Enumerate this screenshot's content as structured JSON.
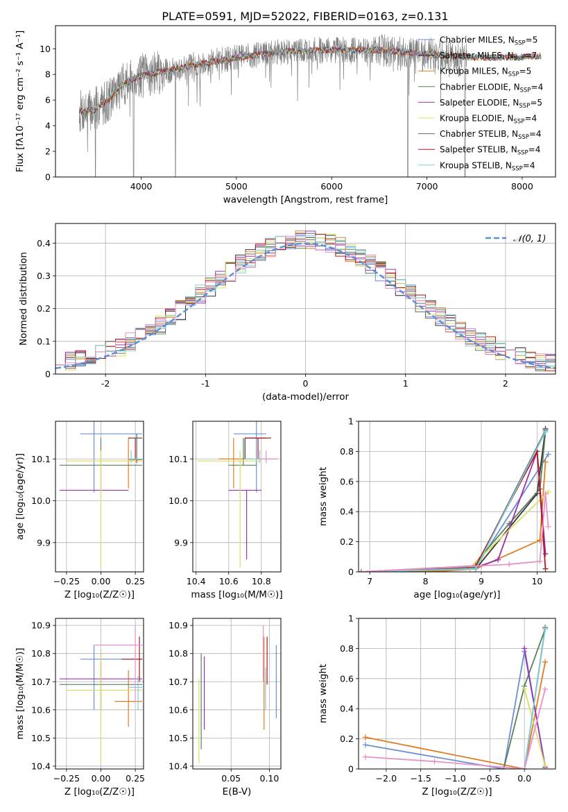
{
  "figure": {
    "title": "PLATE=0591, MJD=52022, FIBERID=0163, z=0.131",
    "models": [
      {
        "name": "Chabrier MILES",
        "nssp": "5",
        "color": "#6a8fd8"
      },
      {
        "name": "Salpeter MILES",
        "nssp": "7",
        "color": "#333333"
      },
      {
        "name": "Kroupa MILES",
        "nssp": "5",
        "color": "#e07b20"
      },
      {
        "name": "Chabrier ELODIE",
        "nssp": "4",
        "color": "#5b7f5b"
      },
      {
        "name": "Salpeter ELODIE",
        "nssp": "5",
        "color": "#9b30b0"
      },
      {
        "name": "Kroupa ELODIE",
        "nssp": "4",
        "color": "#d8e060"
      },
      {
        "name": "Chabrier STELIB",
        "nssp": "4",
        "color": "#666666"
      },
      {
        "name": "Salpeter STELIB",
        "nssp": "4",
        "color": "#b01818"
      },
      {
        "name": "Kroupa STELIB",
        "nssp": "4",
        "color": "#7ecfd8"
      }
    ],
    "extra_colors": {
      "pink": "#e890c8",
      "grid": "#b0b0b0",
      "dashed": "#5b8fd8"
    }
  },
  "chart_data": [
    {
      "id": "spectrum",
      "type": "line",
      "title": "PLATE=0591, MJD=52022, FIBERID=0163, z=0.131",
      "xlabel": "wavelength [Angstrom, rest frame]",
      "ylabel": "Flux [fλ10⁻¹⁷ erg cm⁻² s⁻¹ A⁻¹]",
      "xlim": [
        3100,
        8350
      ],
      "ylim": [
        0,
        11.8
      ],
      "xticks": [
        4000,
        5000,
        6000,
        7000,
        8000
      ],
      "yticks": [
        0,
        2,
        4,
        6,
        8,
        10
      ],
      "legend_loc": "right",
      "data_wavelength_range": [
        3350,
        7420
      ],
      "model_wavelength_range": [
        3350,
        8200
      ],
      "continuum_anchors": [
        [
          3350,
          5.1
        ],
        [
          3500,
          5.2
        ],
        [
          3650,
          6.0
        ],
        [
          3800,
          7.2
        ],
        [
          4000,
          7.9
        ],
        [
          4300,
          8.3
        ],
        [
          4600,
          8.8
        ],
        [
          5000,
          9.3
        ],
        [
          5500,
          9.8
        ],
        [
          6000,
          9.9
        ],
        [
          6500,
          9.9
        ],
        [
          7000,
          9.6
        ],
        [
          7500,
          9.3
        ],
        [
          8200,
          9.4
        ]
      ],
      "deep_absorption_wavelengths": [
        3520,
        3920,
        4360,
        6800,
        7400
      ]
    },
    {
      "id": "residuals",
      "type": "histogram",
      "xlabel": "(data-model)/error",
      "ylabel": "Normed distribution",
      "xlim": [
        -2.5,
        2.5
      ],
      "ylim": [
        0,
        0.46
      ],
      "xticks": [
        -2,
        -1,
        0,
        1,
        2
      ],
      "yticks": [
        0.0,
        0.1,
        0.2,
        0.3,
        0.4
      ],
      "legend": "𝒩(0, 1)",
      "legend_loc": "top-right",
      "bin_width": 0.1,
      "reference": "normal(0,1)"
    },
    {
      "id": "age_vs_Z",
      "type": "errorbar",
      "xlabel": "Z [log₁₀(Z/Z☉)]",
      "ylabel": "age  [log₁₀(age/yr)]",
      "xlim": [
        -0.33,
        0.31
      ],
      "ylim": [
        9.83,
        10.19
      ],
      "xticks": [
        -0.25,
        0.0,
        0.25
      ],
      "xticklabels": [
        "−0.25",
        "0.00",
        "0.25"
      ],
      "yticks": [
        9.9,
        10.0,
        10.1
      ],
      "yticklabels": [
        "9.9",
        "10.0",
        "10.1"
      ],
      "points": [
        {
          "c": 2,
          "x": 0.2,
          "y": 10.098,
          "xlo": 0.2,
          "xhi": 0.3,
          "ylo": 10.03,
          "yhi": 10.15
        },
        {
          "c": 7,
          "x": 0.25,
          "y": 10.15,
          "xlo": 0.2,
          "xhi": 0.3,
          "ylo": 10.1,
          "yhi": 10.15
        },
        {
          "c": 0,
          "x": -0.05,
          "y": 10.16,
          "xlo": -0.15,
          "xhi": 0.3,
          "ylo": 10.02,
          "yhi": 10.19
        },
        {
          "c": 3,
          "x": 0.0,
          "y": 10.085,
          "xlo": -0.3,
          "xhi": 0.3,
          "ylo": 10.085,
          "yhi": 10.15
        },
        {
          "c": 4,
          "x": 0.0,
          "y": 10.025,
          "xlo": -0.3,
          "xhi": 0.2,
          "ylo": 10.025,
          "yhi": 10.09
        },
        {
          "c": 5,
          "x": 0.0,
          "y": 10.095,
          "xlo": -0.25,
          "xhi": 0.3,
          "ylo": 9.84,
          "yhi": 10.12
        },
        {
          "c": 6,
          "x": 0.26,
          "y": 10.15,
          "xlo": 0.22,
          "xhi": 0.3,
          "ylo": 10.09,
          "yhi": 10.16
        },
        {
          "c": 8,
          "x": 0.22,
          "y": 10.1,
          "xlo": 0.2,
          "xhi": 0.3,
          "ylo": 10.09,
          "yhi": 10.12
        }
      ]
    },
    {
      "id": "age_vs_mass",
      "type": "errorbar",
      "xlabel": "mass [log₁₀(M/M☉)]",
      "ylabel": "",
      "xlim": [
        10.38,
        10.92
      ],
      "ylim": [
        9.83,
        10.19
      ],
      "xticks": [
        10.4,
        10.6,
        10.8
      ],
      "xticklabels": [
        "10.4",
        "10.6",
        "10.8"
      ],
      "yticks": [
        9.9,
        10.0,
        10.1
      ],
      "yticklabels": [
        "9.9",
        "10.0",
        "10.1"
      ],
      "points": [
        {
          "c": 0,
          "x": 10.77,
          "y": 10.16,
          "xlo": 10.63,
          "xhi": 10.83,
          "ylo": 10.02,
          "yhi": 10.19
        },
        {
          "c": 1,
          "x": 10.7,
          "y": 10.15,
          "xlo": 10.7,
          "xhi": 10.83,
          "ylo": 10.1,
          "yhi": 10.15
        },
        {
          "c": 2,
          "x": 10.63,
          "y": 10.1,
          "xlo": 10.54,
          "xhi": 10.74,
          "ylo": 10.03,
          "yhi": 10.15
        },
        {
          "c": 3,
          "x": 10.69,
          "y": 10.085,
          "xlo": 10.6,
          "xhi": 10.77,
          "ylo": 10.085,
          "yhi": 10.15
        },
        {
          "c": 4,
          "x": 10.71,
          "y": 10.025,
          "xlo": 10.6,
          "xhi": 10.8,
          "ylo": 9.86,
          "yhi": 10.025
        },
        {
          "c": 5,
          "x": 10.67,
          "y": 10.095,
          "xlo": 10.41,
          "xhi": 10.8,
          "ylo": 9.84,
          "yhi": 10.12
        },
        {
          "c": 7,
          "x": 10.78,
          "y": 10.15,
          "xlo": 10.7,
          "xhi": 10.86,
          "ylo": 10.1,
          "yhi": 10.15
        },
        {
          "c": 8,
          "x": 10.79,
          "y": 10.1,
          "xlo": 10.7,
          "xhi": 10.88,
          "ylo": 10.09,
          "yhi": 10.12
        },
        {
          "c": 9,
          "x": 10.83,
          "y": 10.1,
          "xlo": 10.78,
          "xhi": 10.9,
          "ylo": 10.09,
          "yhi": 10.12
        }
      ]
    },
    {
      "id": "mass_weight_vs_age",
      "type": "line",
      "xlabel": "age  [log₁₀(age/yr)]",
      "ylabel": "mass weight",
      "xlim": [
        6.8,
        10.33
      ],
      "ylim": [
        0,
        1.0
      ],
      "xticks": [
        7,
        8,
        9,
        10
      ],
      "yticks": [
        0.0,
        0.2,
        0.4,
        0.6,
        0.8,
        1.0
      ],
      "series": [
        {
          "c": 0,
          "x": [
            6.85,
            8.0,
            8.9,
            10.2
          ],
          "y": [
            0.0,
            0.01,
            0.03,
            0.78
          ]
        },
        {
          "c": 1,
          "x": [
            6.85,
            8.0,
            8.9,
            10.0,
            10.15
          ],
          "y": [
            0.0,
            0.005,
            0.02,
            0.52,
            0.95
          ]
        },
        {
          "c": 2,
          "x": [
            6.85,
            8.3,
            8.9,
            10.05,
            10.15
          ],
          "y": [
            0.0,
            0.005,
            0.02,
            0.21,
            0.73
          ]
        },
        {
          "c": 3,
          "x": [
            6.85,
            8.8,
            9.5,
            10.05,
            10.15
          ],
          "y": [
            0.0,
            0.02,
            0.32,
            0.55,
            0.93
          ]
        },
        {
          "c": 4,
          "x": [
            6.85,
            8.9,
            9.3,
            10.0,
            10.15
          ],
          "y": [
            0.0,
            0.03,
            0.08,
            0.8,
            0.12
          ]
        },
        {
          "c": 5,
          "x": [
            6.85,
            8.8,
            9.0,
            10.2
          ],
          "y": [
            0.0,
            0.02,
            0.1,
            0.53
          ]
        },
        {
          "c": 6,
          "x": [
            6.85,
            8.9,
            10.15
          ],
          "y": [
            0.0,
            0.03,
            0.94
          ]
        },
        {
          "c": 7,
          "x": [
            6.85,
            8.9,
            10.0,
            10.15
          ],
          "y": [
            0.0,
            0.04,
            0.8,
            0.02
          ]
        },
        {
          "c": 8,
          "x": [
            6.85,
            8.9,
            10.15
          ],
          "y": [
            0.0,
            0.02,
            0.93
          ]
        },
        {
          "c": 9,
          "x": [
            6.85,
            9.5,
            10.05,
            10.15,
            10.2
          ],
          "y": [
            0.0,
            0.05,
            0.07,
            0.52,
            0.3
          ]
        }
      ]
    },
    {
      "id": "mass_vs_Z",
      "type": "errorbar",
      "xlabel": "Z [log₁₀(Z/Z☉)]",
      "ylabel": "mass [log₁₀(M/M☉)]",
      "xlim": [
        -0.33,
        0.31
      ],
      "ylim": [
        10.39,
        10.925
      ],
      "xticks": [
        -0.25,
        0.0,
        0.25
      ],
      "xticklabels": [
        "−0.25",
        "0.00",
        "0.25"
      ],
      "yticks": [
        10.4,
        10.5,
        10.6,
        10.7,
        10.8,
        10.9
      ],
      "yticklabels": [
        "10.4",
        "10.5",
        "10.6",
        "10.7",
        "10.8",
        "10.9"
      ],
      "points": [
        {
          "c": 0,
          "x": -0.05,
          "y": 10.78,
          "xlo": -0.15,
          "xhi": 0.3,
          "ylo": 10.6,
          "yhi": 10.83
        },
        {
          "c": 2,
          "x": 0.2,
          "y": 10.63,
          "xlo": 0.1,
          "xhi": 0.3,
          "ylo": 10.54,
          "yhi": 10.74
        },
        {
          "c": 3,
          "x": 0.0,
          "y": 10.69,
          "xlo": -0.3,
          "xhi": 0.3,
          "ylo": 10.6,
          "yhi": 10.77
        },
        {
          "c": 4,
          "x": 0.0,
          "y": 10.71,
          "xlo": -0.3,
          "xhi": 0.3,
          "ylo": 10.6,
          "yhi": 10.8
        },
        {
          "c": 5,
          "x": 0.0,
          "y": 10.67,
          "xlo": -0.25,
          "xhi": 0.3,
          "ylo": 10.41,
          "yhi": 10.8
        },
        {
          "c": 7,
          "x": 0.28,
          "y": 10.78,
          "xlo": 0.15,
          "xhi": 0.3,
          "ylo": 10.7,
          "yhi": 10.86
        },
        {
          "c": 8,
          "x": 0.27,
          "y": 10.68,
          "xlo": 0.2,
          "xhi": 0.3,
          "ylo": 10.6,
          "yhi": 10.72
        },
        {
          "c": 9,
          "x": 0.25,
          "y": 10.83,
          "xlo": -0.05,
          "xhi": 0.3,
          "ylo": 10.63,
          "yhi": 10.9
        }
      ]
    },
    {
      "id": "mass_vs_ebv",
      "type": "errorbar",
      "xlabel": "E(B-V)",
      "ylabel": "",
      "xlim": [
        0.0,
        0.115
      ],
      "ylim": [
        10.39,
        10.925
      ],
      "xticks": [
        0.05,
        0.1
      ],
      "xticklabels": [
        "0.05",
        "0.10"
      ],
      "yticks": [
        10.4,
        10.5,
        10.6,
        10.7,
        10.8,
        10.9
      ],
      "yticklabels": [
        "10.4",
        "10.5",
        "10.6",
        "10.7",
        "10.8",
        "10.9"
      ],
      "points": [
        {
          "c": 0,
          "x": 0.109,
          "y": 10.69,
          "xlo": 0.109,
          "xhi": 0.109,
          "ylo": 10.57,
          "yhi": 10.83
        },
        {
          "c": 2,
          "x": 0.093,
          "y": 10.63,
          "xlo": 0.093,
          "xhi": 0.093,
          "ylo": 10.53,
          "yhi": 10.86
        },
        {
          "c": 3,
          "x": 0.011,
          "y": 10.63,
          "xlo": 0.011,
          "xhi": 0.011,
          "ylo": 10.46,
          "yhi": 10.8
        },
        {
          "c": 4,
          "x": 0.015,
          "y": 10.67,
          "xlo": 0.015,
          "xhi": 0.015,
          "ylo": 10.53,
          "yhi": 10.79
        },
        {
          "c": 5,
          "x": 0.008,
          "y": 10.6,
          "xlo": 0.008,
          "xhi": 0.008,
          "ylo": 10.41,
          "yhi": 10.71
        },
        {
          "c": 7,
          "x": 0.097,
          "y": 10.8,
          "xlo": 0.097,
          "xhi": 0.097,
          "ylo": 10.69,
          "yhi": 10.86
        },
        {
          "c": 8,
          "x": 0.095,
          "y": 10.68,
          "xlo": 0.095,
          "xhi": 0.095,
          "ylo": 10.6,
          "yhi": 10.75
        },
        {
          "c": 9,
          "x": 0.092,
          "y": 10.8,
          "xlo": 0.092,
          "xhi": 0.092,
          "ylo": 10.7,
          "yhi": 10.9
        }
      ]
    },
    {
      "id": "mass_weight_vs_Z",
      "type": "line",
      "xlabel": "Z [log₁₀(Z/Z☉)]",
      "ylabel": "mass weight",
      "xlim": [
        -2.4,
        0.45
      ],
      "ylim": [
        0,
        1.0
      ],
      "xticks": [
        -2.0,
        -1.5,
        -1.0,
        -0.5,
        0.0
      ],
      "xticklabels": [
        "−2.0",
        "−1.5",
        "−1.0",
        "−0.5",
        "0.0"
      ],
      "yticks": [
        0.0,
        0.2,
        0.4,
        0.6,
        0.8,
        1.0
      ],
      "series": [
        {
          "c": 0,
          "x": [
            -2.3,
            -0.3,
            0.0,
            0.3
          ],
          "y": [
            0.16,
            0.0,
            0.78,
            0.02
          ]
        },
        {
          "c": 2,
          "x": [
            -2.3,
            0.0,
            0.3
          ],
          "y": [
            0.21,
            0.0,
            0.71
          ]
        },
        {
          "c": 3,
          "x": [
            -0.3,
            0.0,
            0.3
          ],
          "y": [
            0.0,
            0.55,
            0.93
          ]
        },
        {
          "c": 4,
          "x": [
            0.0,
            0.3
          ],
          "y": [
            0.8,
            0.01
          ]
        },
        {
          "c": 5,
          "x": [
            0.0,
            0.3
          ],
          "y": [
            0.53,
            0.02
          ]
        },
        {
          "c": 6,
          "x": [
            0.0,
            0.3
          ],
          "y": [
            0.0,
            0.94
          ]
        },
        {
          "c": 8,
          "x": [
            0.0,
            0.3
          ],
          "y": [
            0.0,
            0.93
          ]
        },
        {
          "c": 9,
          "x": [
            -2.3,
            -1.3,
            0.0,
            0.3
          ],
          "y": [
            0.08,
            0.05,
            0.0,
            0.53
          ]
        }
      ]
    }
  ]
}
